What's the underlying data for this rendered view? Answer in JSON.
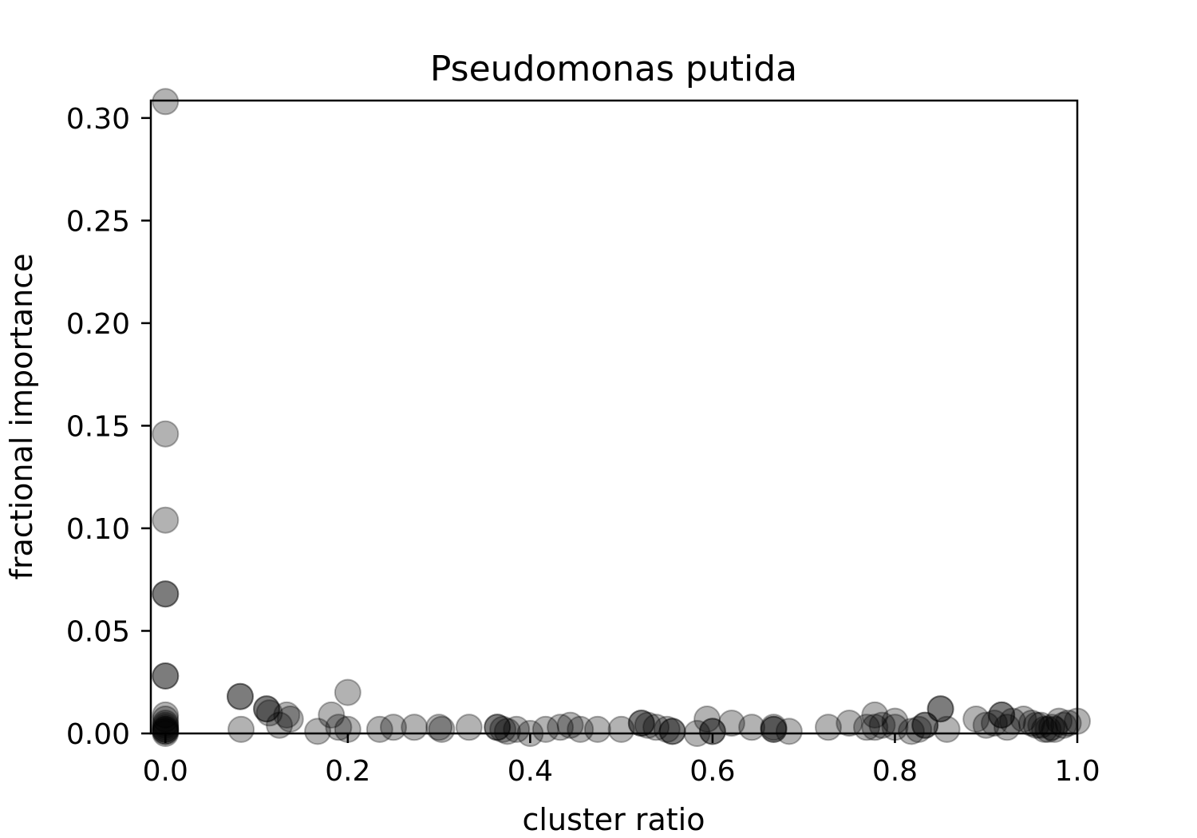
{
  "chart_data": {
    "type": "scatter",
    "title": "Pseudomonas putida",
    "xlabel": "cluster ratio",
    "ylabel": "fractional importance",
    "xlim": [
      -0.016,
      1.0
    ],
    "ylim": [
      0.0,
      0.3085
    ],
    "xticks": [
      0.0,
      0.2,
      0.4,
      0.6,
      0.8,
      1.0
    ],
    "xtick_labels": [
      "0.0",
      "0.2",
      "0.4",
      "0.6",
      "0.8",
      "1.0"
    ],
    "yticks": [
      0.0,
      0.05,
      0.1,
      0.15,
      0.2,
      0.25,
      0.3
    ],
    "ytick_labels": [
      "0.00",
      "0.05",
      "0.10",
      "0.15",
      "0.20",
      "0.25",
      "0.30"
    ],
    "grid": false,
    "marker_color": "#000000",
    "marker_alpha": 0.3,
    "points": [
      {
        "x": 0.0,
        "y": 0.308
      },
      {
        "x": 0.0,
        "y": 0.146
      },
      {
        "x": 0.0,
        "y": 0.104
      },
      {
        "x": 0.0,
        "y": 0.068
      },
      {
        "x": 0.0,
        "y": 0.068
      },
      {
        "x": 0.0,
        "y": 0.028
      },
      {
        "x": 0.0,
        "y": 0.028
      },
      {
        "x": 0.0,
        "y": 0.009
      },
      {
        "x": 0.0,
        "y": 0.007
      },
      {
        "x": 0.0,
        "y": 0.005
      },
      {
        "x": 0.0,
        "y": 0.004
      },
      {
        "x": 0.0,
        "y": 0.003
      },
      {
        "x": 0.0,
        "y": 0.002
      },
      {
        "x": 0.0,
        "y": 0.002
      },
      {
        "x": 0.0,
        "y": 0.001
      },
      {
        "x": 0.0,
        "y": 0.001
      },
      {
        "x": 0.0,
        "y": 0.0
      },
      {
        "x": 0.082,
        "y": 0.018
      },
      {
        "x": 0.082,
        "y": 0.018
      },
      {
        "x": 0.083,
        "y": 0.002
      },
      {
        "x": 0.111,
        "y": 0.012
      },
      {
        "x": 0.111,
        "y": 0.012
      },
      {
        "x": 0.114,
        "y": 0.01
      },
      {
        "x": 0.125,
        "y": 0.004
      },
      {
        "x": 0.133,
        "y": 0.009
      },
      {
        "x": 0.137,
        "y": 0.007
      },
      {
        "x": 0.167,
        "y": 0.001
      },
      {
        "x": 0.182,
        "y": 0.009
      },
      {
        "x": 0.19,
        "y": 0.003
      },
      {
        "x": 0.2,
        "y": 0.002
      },
      {
        "x": 0.2,
        "y": 0.02
      },
      {
        "x": 0.235,
        "y": 0.002
      },
      {
        "x": 0.25,
        "y": 0.003
      },
      {
        "x": 0.273,
        "y": 0.003
      },
      {
        "x": 0.3,
        "y": 0.003
      },
      {
        "x": 0.303,
        "y": 0.002
      },
      {
        "x": 0.333,
        "y": 0.003
      },
      {
        "x": 0.364,
        "y": 0.003
      },
      {
        "x": 0.364,
        "y": 0.003
      },
      {
        "x": 0.37,
        "y": 0.002
      },
      {
        "x": 0.375,
        "y": 0.001
      },
      {
        "x": 0.385,
        "y": 0.002
      },
      {
        "x": 0.4,
        "y": 0.0
      },
      {
        "x": 0.417,
        "y": 0.002
      },
      {
        "x": 0.433,
        "y": 0.003
      },
      {
        "x": 0.444,
        "y": 0.004
      },
      {
        "x": 0.455,
        "y": 0.002
      },
      {
        "x": 0.474,
        "y": 0.002
      },
      {
        "x": 0.5,
        "y": 0.002
      },
      {
        "x": 0.522,
        "y": 0.005
      },
      {
        "x": 0.522,
        "y": 0.005
      },
      {
        "x": 0.529,
        "y": 0.004
      },
      {
        "x": 0.538,
        "y": 0.003
      },
      {
        "x": 0.55,
        "y": 0.002
      },
      {
        "x": 0.556,
        "y": 0.001
      },
      {
        "x": 0.556,
        "y": 0.001
      },
      {
        "x": 0.583,
        "y": 0.0
      },
      {
        "x": 0.594,
        "y": 0.007
      },
      {
        "x": 0.6,
        "y": 0.001
      },
      {
        "x": 0.6,
        "y": 0.001
      },
      {
        "x": 0.621,
        "y": 0.005
      },
      {
        "x": 0.643,
        "y": 0.003
      },
      {
        "x": 0.667,
        "y": 0.003
      },
      {
        "x": 0.667,
        "y": 0.002
      },
      {
        "x": 0.667,
        "y": 0.002
      },
      {
        "x": 0.684,
        "y": 0.001
      },
      {
        "x": 0.727,
        "y": 0.003
      },
      {
        "x": 0.75,
        "y": 0.005
      },
      {
        "x": 0.769,
        "y": 0.003
      },
      {
        "x": 0.778,
        "y": 0.009
      },
      {
        "x": 0.778,
        "y": 0.003
      },
      {
        "x": 0.786,
        "y": 0.004
      },
      {
        "x": 0.8,
        "y": 0.006
      },
      {
        "x": 0.8,
        "y": 0.003
      },
      {
        "x": 0.818,
        "y": 0.001
      },
      {
        "x": 0.826,
        "y": 0.002
      },
      {
        "x": 0.833,
        "y": 0.004
      },
      {
        "x": 0.833,
        "y": 0.004
      },
      {
        "x": 0.85,
        "y": 0.012
      },
      {
        "x": 0.85,
        "y": 0.012
      },
      {
        "x": 0.857,
        "y": 0.002
      },
      {
        "x": 0.889,
        "y": 0.007
      },
      {
        "x": 0.9,
        "y": 0.004
      },
      {
        "x": 0.909,
        "y": 0.005
      },
      {
        "x": 0.917,
        "y": 0.009
      },
      {
        "x": 0.917,
        "y": 0.009
      },
      {
        "x": 0.923,
        "y": 0.003
      },
      {
        "x": 0.929,
        "y": 0.006
      },
      {
        "x": 0.941,
        "y": 0.007
      },
      {
        "x": 0.95,
        "y": 0.005
      },
      {
        "x": 0.955,
        "y": 0.004
      },
      {
        "x": 0.96,
        "y": 0.004
      },
      {
        "x": 0.964,
        "y": 0.002
      },
      {
        "x": 0.968,
        "y": 0.002
      },
      {
        "x": 0.972,
        "y": 0.003
      },
      {
        "x": 0.975,
        "y": 0.002
      },
      {
        "x": 0.98,
        "y": 0.006
      },
      {
        "x": 0.985,
        "y": 0.004
      },
      {
        "x": 0.99,
        "y": 0.005
      },
      {
        "x": 1.0,
        "y": 0.006
      }
    ]
  }
}
